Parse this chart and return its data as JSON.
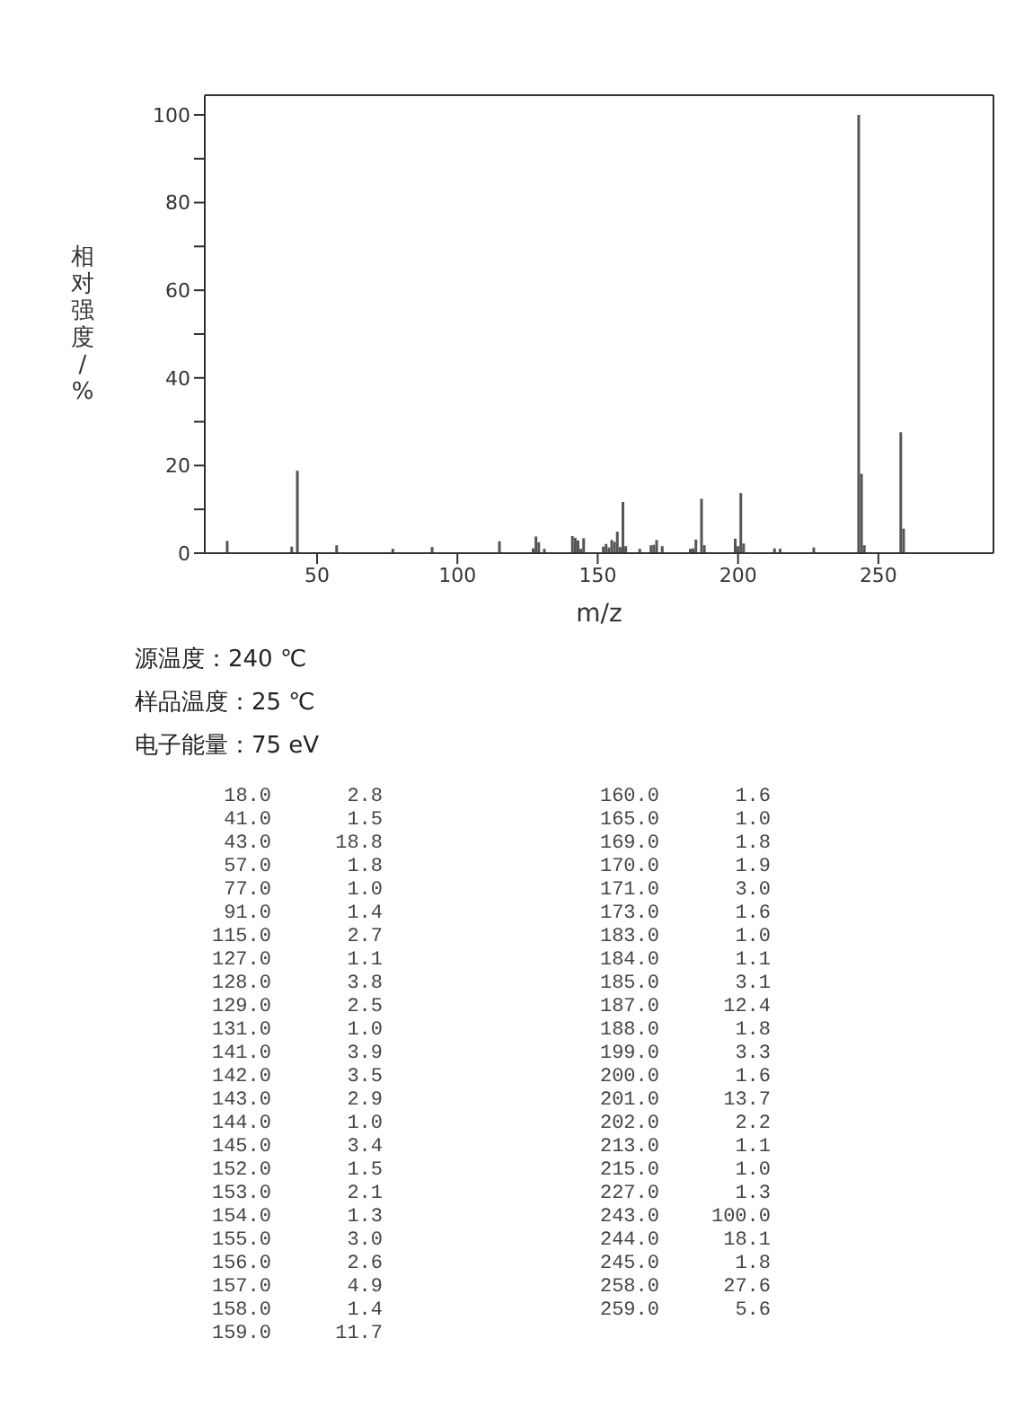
{
  "chart_data": [
    {
      "type": "bar",
      "xlabel": "m/z",
      "ylabel": "相对强度/%",
      "x": [
        18,
        41,
        43,
        57,
        77,
        91,
        115,
        127,
        128,
        129,
        131,
        141,
        142,
        143,
        144,
        145,
        152,
        153,
        154,
        155,
        156,
        157,
        158,
        159,
        160,
        165,
        169,
        170,
        171,
        173,
        183,
        184,
        185,
        187,
        188,
        199,
        200,
        201,
        202,
        213,
        215,
        227,
        243,
        244,
        245,
        258,
        259
      ],
      "values": [
        2.8,
        1.5,
        18.8,
        1.8,
        1.0,
        1.4,
        2.7,
        1.1,
        3.8,
        2.5,
        1.0,
        3.9,
        3.5,
        2.9,
        1.0,
        3.4,
        1.5,
        2.1,
        1.3,
        3.0,
        2.6,
        4.9,
        1.4,
        11.7,
        1.6,
        1.0,
        1.8,
        1.9,
        3.0,
        1.6,
        1.0,
        1.1,
        3.1,
        12.4,
        1.8,
        3.3,
        1.6,
        13.7,
        2.2,
        1.1,
        1.0,
        1.3,
        100.0,
        18.1,
        1.8,
        27.6,
        5.6
      ],
      "color": "#555555",
      "xlim": [
        10,
        291
      ],
      "xticks": [
        50,
        100,
        150,
        200,
        250
      ],
      "ylim": [
        0,
        104.5
      ],
      "yticks": [
        0,
        {
          "value": 10,
          "label": null
        },
        20,
        {
          "value": 30,
          "label": null
        },
        40,
        {
          "value": 50,
          "label": null
        },
        60,
        {
          "value": 70,
          "label": null
        },
        80,
        {
          "value": 90,
          "label": null
        },
        100
      ],
      "annotations": [
        "源温度：240 ℃",
        "样品温度：25 ℃",
        "电子能量：75 eV"
      ]
    },
    {
      "type": "other",
      "annotations": [
        "18.0",
        "2.8",
        "41.0",
        "1.5",
        "43.0",
        "18.8",
        "57.0",
        "1.8",
        "77.0",
        "1.0",
        "91.0",
        "1.4",
        "115.0",
        "2.7",
        "127.0",
        "1.1",
        "128.0",
        "3.8",
        "129.0",
        "2.5",
        "131.0",
        "1.0",
        "141.0",
        "3.9",
        "142.0",
        "3.5",
        "143.0",
        "2.9",
        "144.0",
        "1.0",
        "145.0",
        "3.4",
        "152.0",
        "1.5",
        "153.0",
        "2.1",
        "154.0",
        "1.3",
        "155.0",
        "3.0",
        "156.0",
        "2.6",
        "157.0",
        "4.9",
        "158.0",
        "1.4",
        "159.0",
        "11.7",
        "160.0",
        "1.6",
        "165.0",
        "1.0",
        "169.0",
        "1.8",
        "170.0",
        "1.9",
        "171.0",
        "3.0",
        "173.0",
        "1.6",
        "183.0",
        "1.0",
        "184.0",
        "1.1",
        "185.0",
        "3.1",
        "187.0",
        "12.4",
        "188.0",
        "1.8",
        "199.0",
        "3.3",
        "200.0",
        "1.6",
        "201.0",
        "13.7",
        "202.0",
        "2.2",
        "213.0",
        "1.1",
        "215.0",
        "1.0",
        "227.0",
        "1.3",
        "243.0",
        "100.0",
        "244.0",
        "18.1",
        "245.0",
        "1.8",
        "258.0",
        "27.6",
        "259.0",
        "5.6"
      ]
    }
  ]
}
